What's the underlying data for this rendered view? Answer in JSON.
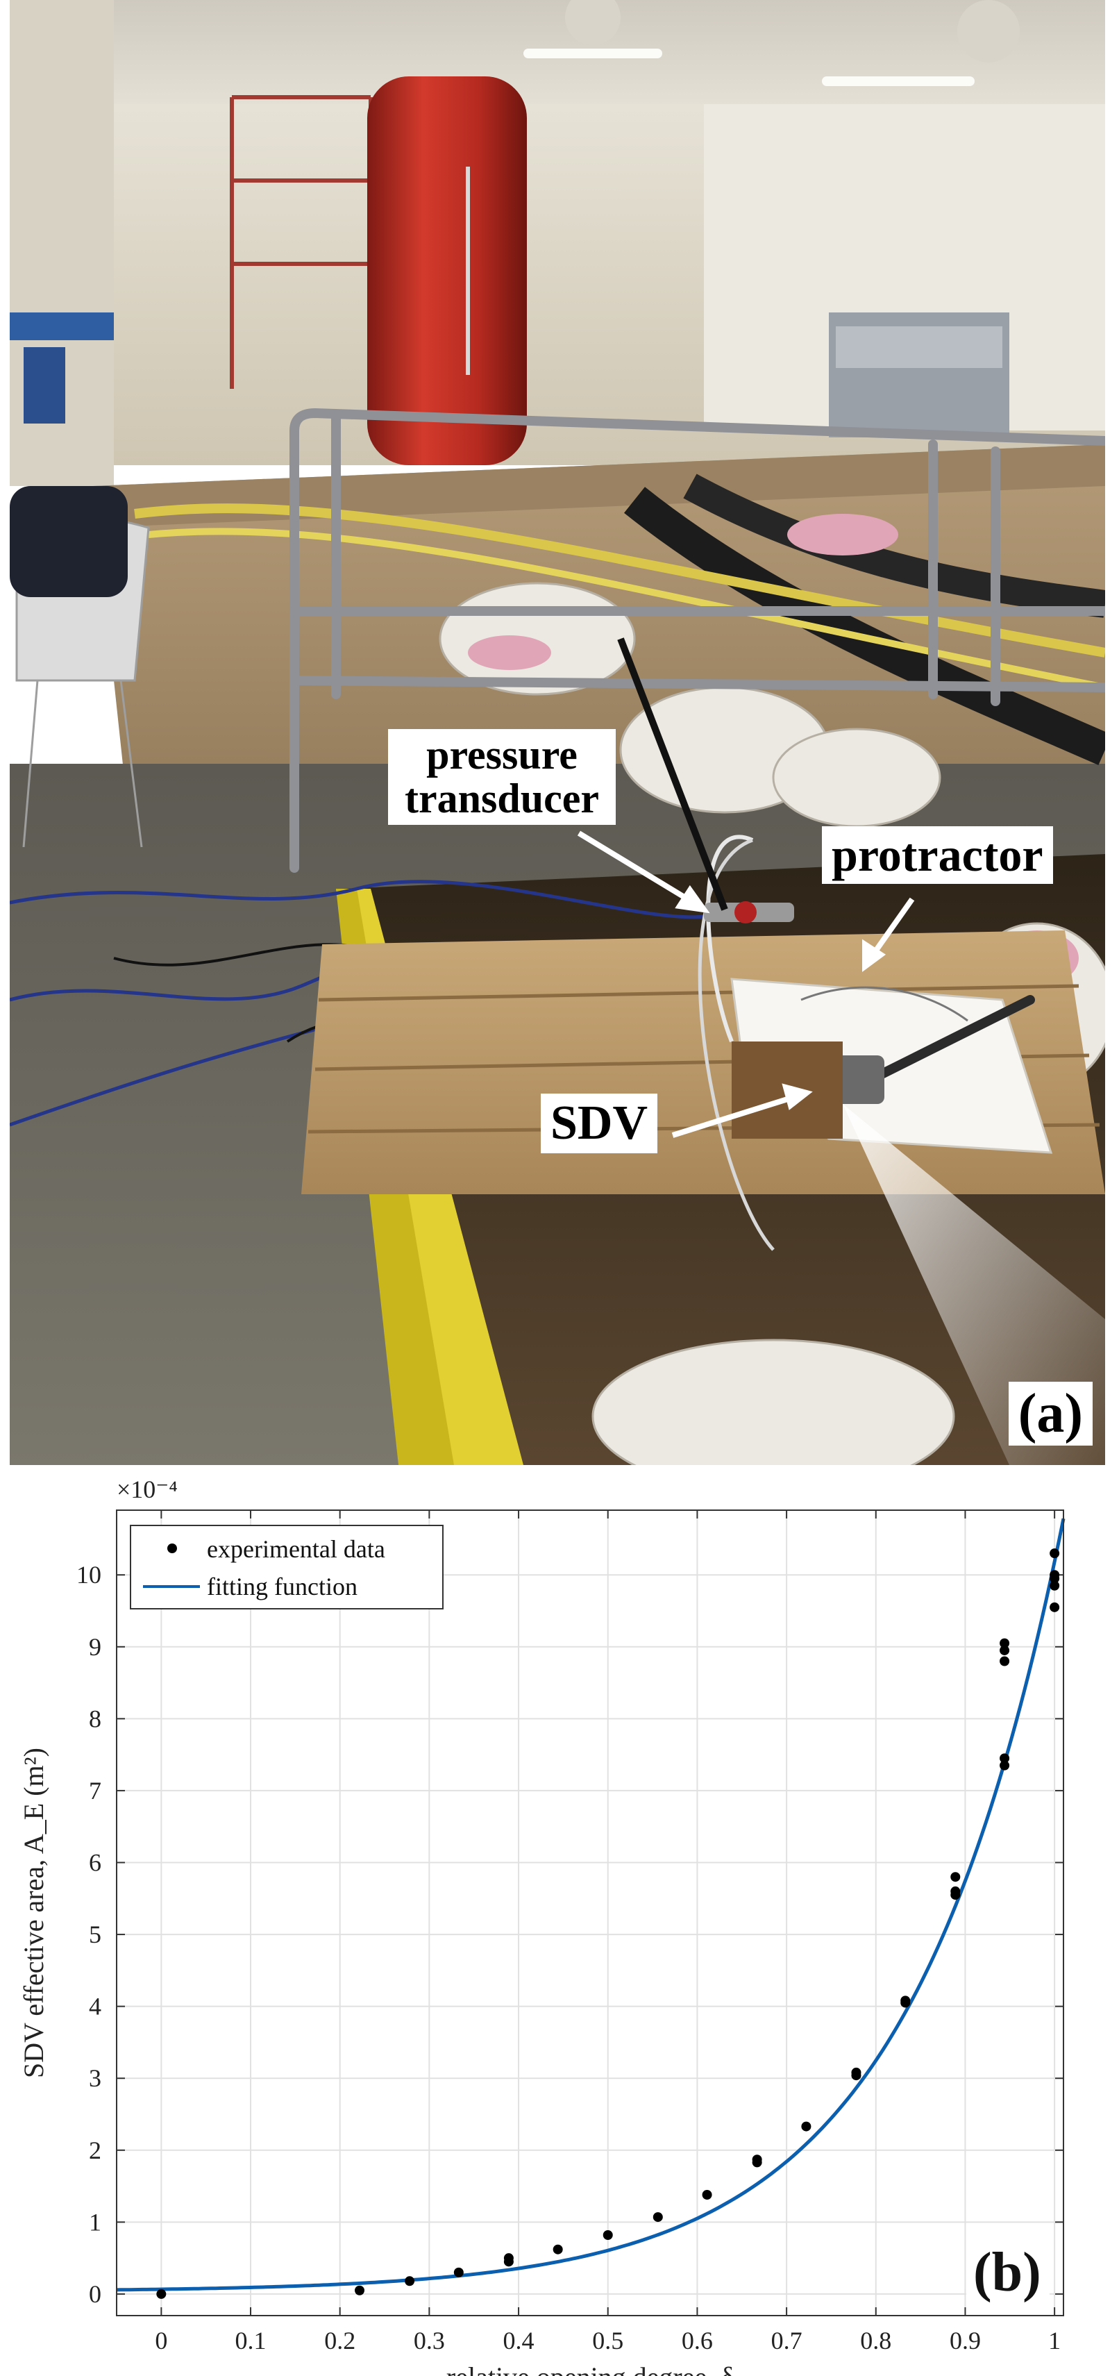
{
  "panel_a": {
    "labels": {
      "pressure_transducer": "pressure transducer",
      "protractor": "protractor",
      "sdv": "SDV",
      "panel_tag": "(a)"
    }
  },
  "chart_data": {
    "type": "scatter",
    "panel_tag": "(b)",
    "xlabel": "relative opening degree, δ",
    "ylabel": "SDV effective area, A_E (m²)",
    "y_exponent_label": "×10⁻⁴",
    "xlim": [
      -0.05,
      1.01
    ],
    "ylim": [
      -0.3,
      10.9
    ],
    "x_ticks": [
      0,
      0.1,
      0.2,
      0.3,
      0.4,
      0.5,
      0.6,
      0.7,
      0.8,
      0.9,
      1
    ],
    "x_tick_labels": [
      "0",
      "0.1",
      "0.2",
      "0.3",
      "0.4",
      "0.5",
      "0.6",
      "0.7",
      "0.8",
      "0.9",
      "1"
    ],
    "y_ticks": [
      0,
      1,
      2,
      3,
      4,
      5,
      6,
      7,
      8,
      9,
      10
    ],
    "y_tick_labels": [
      "0",
      "1",
      "2",
      "3",
      "4",
      "5",
      "6",
      "7",
      "8",
      "9",
      "10"
    ],
    "grid": true,
    "legend_position": "top-left",
    "colors": {
      "fit": "#0b5fae",
      "points": "#000000"
    },
    "series": [
      {
        "name": "experimental data",
        "kind": "scatter",
        "points": [
          [
            0.0,
            0.0
          ],
          [
            0.222,
            0.05
          ],
          [
            0.278,
            0.18
          ],
          [
            0.333,
            0.3
          ],
          [
            0.389,
            0.45
          ],
          [
            0.389,
            0.5
          ],
          [
            0.444,
            0.62
          ],
          [
            0.5,
            0.82
          ],
          [
            0.556,
            1.07
          ],
          [
            0.611,
            1.38
          ],
          [
            0.667,
            1.83
          ],
          [
            0.667,
            1.87
          ],
          [
            0.722,
            2.33
          ],
          [
            0.778,
            3.04
          ],
          [
            0.778,
            3.08
          ],
          [
            0.833,
            4.05
          ],
          [
            0.833,
            4.08
          ],
          [
            0.889,
            5.55
          ],
          [
            0.889,
            5.6
          ],
          [
            0.889,
            5.8
          ],
          [
            0.944,
            7.35
          ],
          [
            0.944,
            7.45
          ],
          [
            0.944,
            8.8
          ],
          [
            0.944,
            8.95
          ],
          [
            0.944,
            9.05
          ],
          [
            1.0,
            9.55
          ],
          [
            1.0,
            9.85
          ],
          [
            1.0,
            9.95
          ],
          [
            1.0,
            10.0
          ],
          [
            1.0,
            10.3
          ]
        ]
      },
      {
        "name": "fitting function",
        "kind": "line",
        "formula": {
          "a": 0.0345,
          "b": 0.0485,
          "c": 10.45,
          "d": 0.2
        }
      }
    ]
  }
}
